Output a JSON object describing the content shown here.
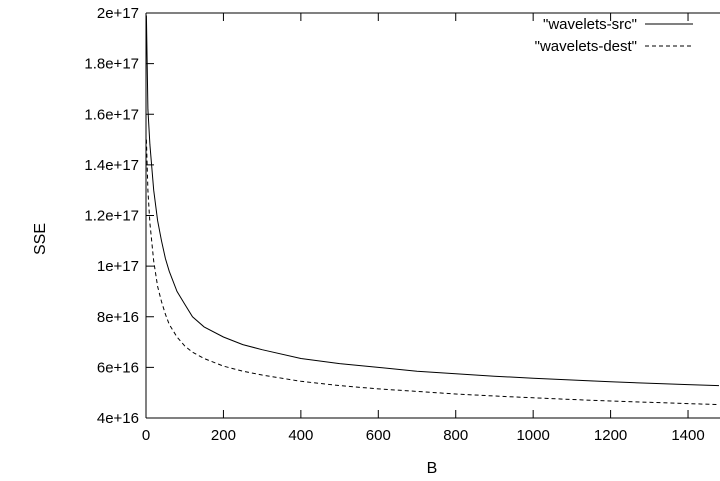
{
  "chart_data": {
    "type": "line",
    "title": "",
    "xlabel": "B",
    "ylabel": "SSE",
    "xlim": [
      0,
      1480
    ],
    "ylim": [
      4e+16,
      2e+17
    ],
    "x_ticks": [
      0,
      200,
      400,
      600,
      800,
      1000,
      1200,
      1400
    ],
    "x_tick_labels": [
      "0",
      "200",
      "400",
      "600",
      "800",
      "1000",
      "1200",
      "1400"
    ],
    "y_ticks": [
      4e+16,
      6e+16,
      8e+16,
      1e+17,
      1.2e+17,
      1.4e+17,
      1.6e+17,
      1.8e+17,
      2e+17
    ],
    "y_tick_labels": [
      "4e+16",
      "6e+16",
      "8e+16",
      "1e+17",
      "1.2e+17",
      "1.4e+17",
      "1.6e+17",
      "1.8e+17",
      "2e+17"
    ],
    "grid": false,
    "legend_position": "top-right",
    "series": [
      {
        "name": "\"wavelets-src\"",
        "line_style": "solid",
        "color": "#000000",
        "x": [
          1,
          5,
          10,
          20,
          30,
          40,
          50,
          60,
          80,
          100,
          120,
          150,
          200,
          250,
          300,
          400,
          500,
          600,
          700,
          800,
          900,
          1000,
          1100,
          1200,
          1300,
          1400,
          1480
        ],
        "y": [
          1.99e+17,
          1.62e+17,
          1.48e+17,
          1.3e+17,
          1.18e+17,
          1.1e+17,
          1.03e+17,
          9.8e+16,
          9e+16,
          8.5e+16,
          8e+16,
          7.6e+16,
          7.2e+16,
          6.9e+16,
          6.7e+16,
          6.35e+16,
          6.15e+16,
          6e+16,
          5.85e+16,
          5.75e+16,
          5.65e+16,
          5.57e+16,
          5.5e+16,
          5.43e+16,
          5.37e+16,
          5.32e+16,
          5.28e+16
        ]
      },
      {
        "name": "\"wavelets-dest\"",
        "line_style": "dashed",
        "color": "#000000",
        "x": [
          1,
          5,
          10,
          20,
          30,
          40,
          50,
          60,
          80,
          100,
          120,
          150,
          200,
          250,
          300,
          400,
          500,
          600,
          700,
          800,
          900,
          1000,
          1100,
          1200,
          1300,
          1400,
          1480
        ],
        "y": [
          1.5e+17,
          1.3e+17,
          1.17e+17,
          1.02e+17,
          9.2e+16,
          8.6e+16,
          8.1e+16,
          7.7e+16,
          7.2e+16,
          6.85e+16,
          6.6e+16,
          6.35e+16,
          6.05e+16,
          5.85e+16,
          5.7e+16,
          5.45e+16,
          5.28e+16,
          5.15e+16,
          5.05e+16,
          4.95e+16,
          4.87e+16,
          4.8e+16,
          4.73e+16,
          4.67e+16,
          4.62e+16,
          4.57e+16,
          4.53e+16
        ]
      }
    ]
  }
}
